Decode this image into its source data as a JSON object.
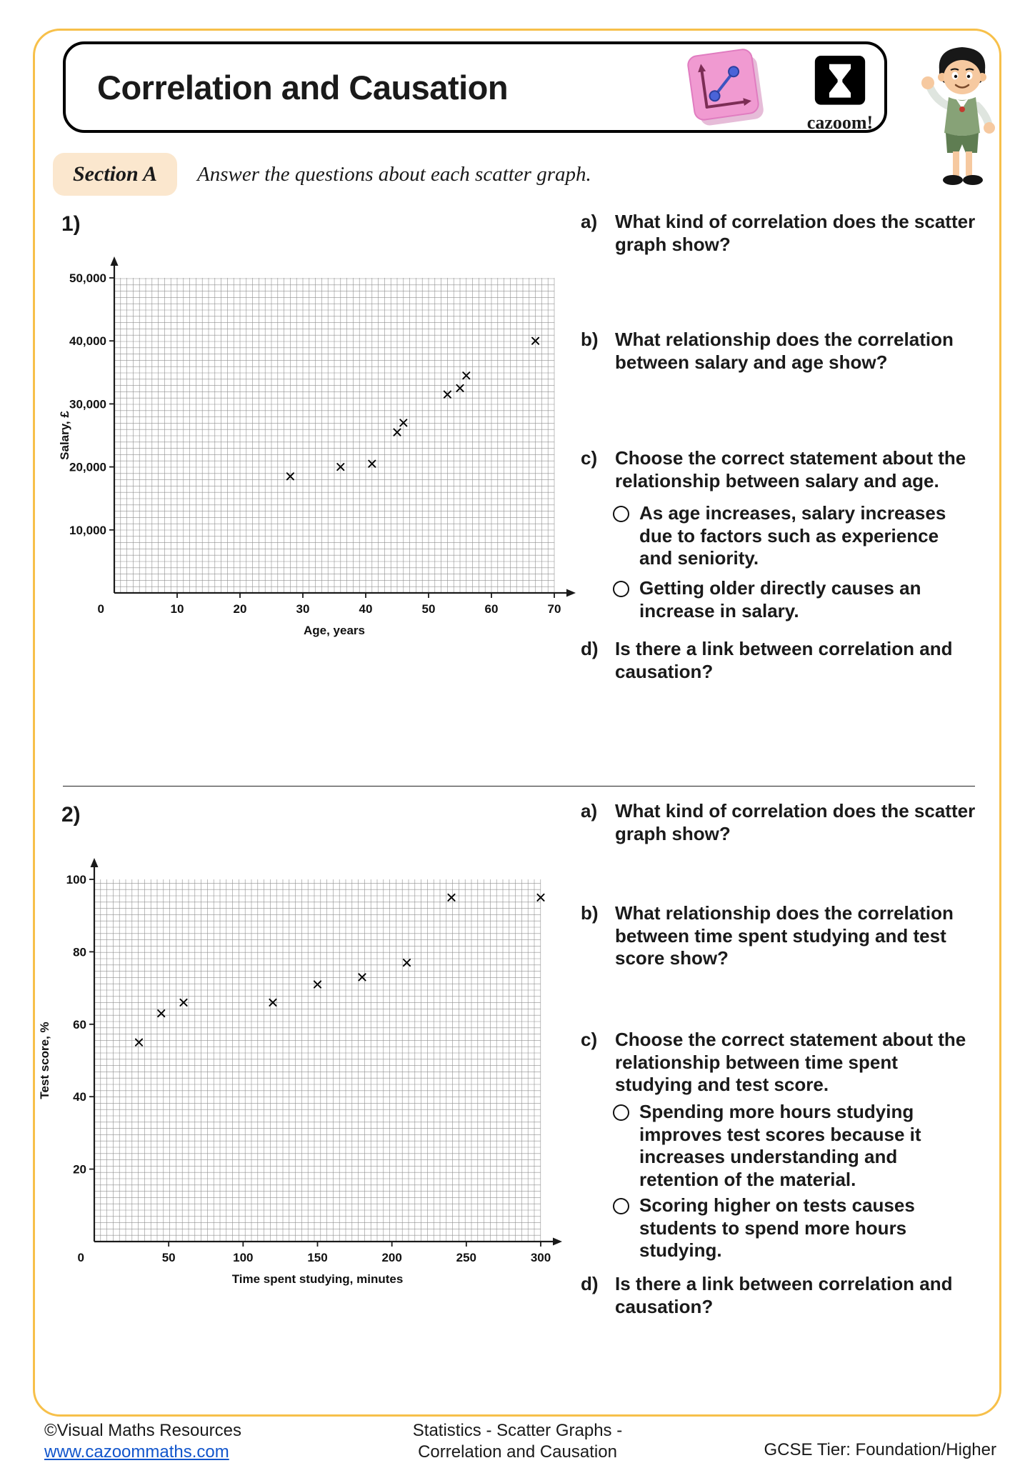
{
  "header": {
    "title": "Correlation and Causation",
    "logo_text": "cazoom!"
  },
  "section": {
    "label": "Section A",
    "instruction": "Answer the questions about each scatter graph."
  },
  "questions": [
    {
      "number": "1)",
      "parts": [
        {
          "label": "a)",
          "text": "What kind of correlation does the scatter graph show?"
        },
        {
          "label": "b)",
          "text": "What relationship does the correlation between salary and age show?"
        },
        {
          "label": "c)",
          "text": "Choose the correct statement about the relationship between salary and age.",
          "options": [
            "As age increases, salary increases due to factors such as experience and seniority.",
            "Getting older directly causes an increase in salary."
          ]
        },
        {
          "label": "d)",
          "text": "Is there a link between correlation and causation?"
        }
      ]
    },
    {
      "number": "2)",
      "parts": [
        {
          "label": "a)",
          "text": "What kind of correlation does the scatter graph show?"
        },
        {
          "label": "b)",
          "text": "What relationship does the correlation between time spent studying and test score show?"
        },
        {
          "label": "c)",
          "text": "Choose the correct statement about the relationship between time spent studying and test score.",
          "options": [
            "Spending more hours studying improves test scores because it increases understanding and retention of the material.",
            "Scoring higher on tests causes students to spend more hours studying."
          ]
        },
        {
          "label": "d)",
          "text": "Is there a link between correlation and causation?"
        }
      ]
    }
  ],
  "chart_data": [
    {
      "type": "scatter",
      "xlabel": "Age, years",
      "ylabel": "Salary, £",
      "xlim": [
        0,
        70
      ],
      "ylim": [
        0,
        50000
      ],
      "origin_label": "0",
      "grid": "fine graph paper",
      "xticks": [
        {
          "v": 10,
          "label": "10"
        },
        {
          "v": 20,
          "label": "20"
        },
        {
          "v": 30,
          "label": "30"
        },
        {
          "v": 40,
          "label": "40"
        },
        {
          "v": 50,
          "label": "50"
        },
        {
          "v": 60,
          "label": "60"
        },
        {
          "v": 70,
          "label": "70"
        }
      ],
      "yticks": [
        {
          "v": 10000,
          "label": "10,000"
        },
        {
          "v": 20000,
          "label": "20,000"
        },
        {
          "v": 30000,
          "label": "30,000"
        },
        {
          "v": 40000,
          "label": "40,000"
        },
        {
          "v": 50000,
          "label": "50,000"
        }
      ],
      "points": [
        [
          28,
          18500
        ],
        [
          36,
          20000
        ],
        [
          41,
          20500
        ],
        [
          45,
          25500
        ],
        [
          46,
          27000
        ],
        [
          53,
          31500
        ],
        [
          55,
          32500
        ],
        [
          56,
          34500
        ],
        [
          67,
          40000
        ]
      ],
      "marker": "x"
    },
    {
      "type": "scatter",
      "xlabel": "Time spent studying, minutes",
      "ylabel": "Test score, %",
      "xlim": [
        0,
        300
      ],
      "ylim": [
        0,
        100
      ],
      "origin_label": "0",
      "grid": "fine graph paper",
      "xticks": [
        {
          "v": 50,
          "label": "50"
        },
        {
          "v": 100,
          "label": "100"
        },
        {
          "v": 150,
          "label": "150"
        },
        {
          "v": 200,
          "label": "200"
        },
        {
          "v": 250,
          "label": "250"
        },
        {
          "v": 300,
          "label": "300"
        }
      ],
      "yticks": [
        {
          "v": 20,
          "label": "20"
        },
        {
          "v": 40,
          "label": "40"
        },
        {
          "v": 60,
          "label": "60"
        },
        {
          "v": 80,
          "label": "80"
        },
        {
          "v": 100,
          "label": "100"
        }
      ],
      "points": [
        [
          30,
          55
        ],
        [
          45,
          63
        ],
        [
          60,
          66
        ],
        [
          120,
          66
        ],
        [
          150,
          71
        ],
        [
          180,
          73
        ],
        [
          210,
          77
        ],
        [
          240,
          95
        ],
        [
          300,
          95
        ]
      ],
      "marker": "x"
    }
  ],
  "footer": {
    "copyright": "©Visual Maths Resources",
    "site": "www.cazoommaths.com",
    "center_line1": "Statistics - Scatter Graphs -",
    "center_line2": "Correlation and Causation",
    "tier": "GCSE Tier: Foundation/Higher"
  },
  "theme": {
    "frame_color": "#F7C04A",
    "section_bg": "#FBE7CE",
    "badge_pink": "#F09AD1",
    "link_color": "#1155CC",
    "grid_color": "#8F8F8F"
  }
}
